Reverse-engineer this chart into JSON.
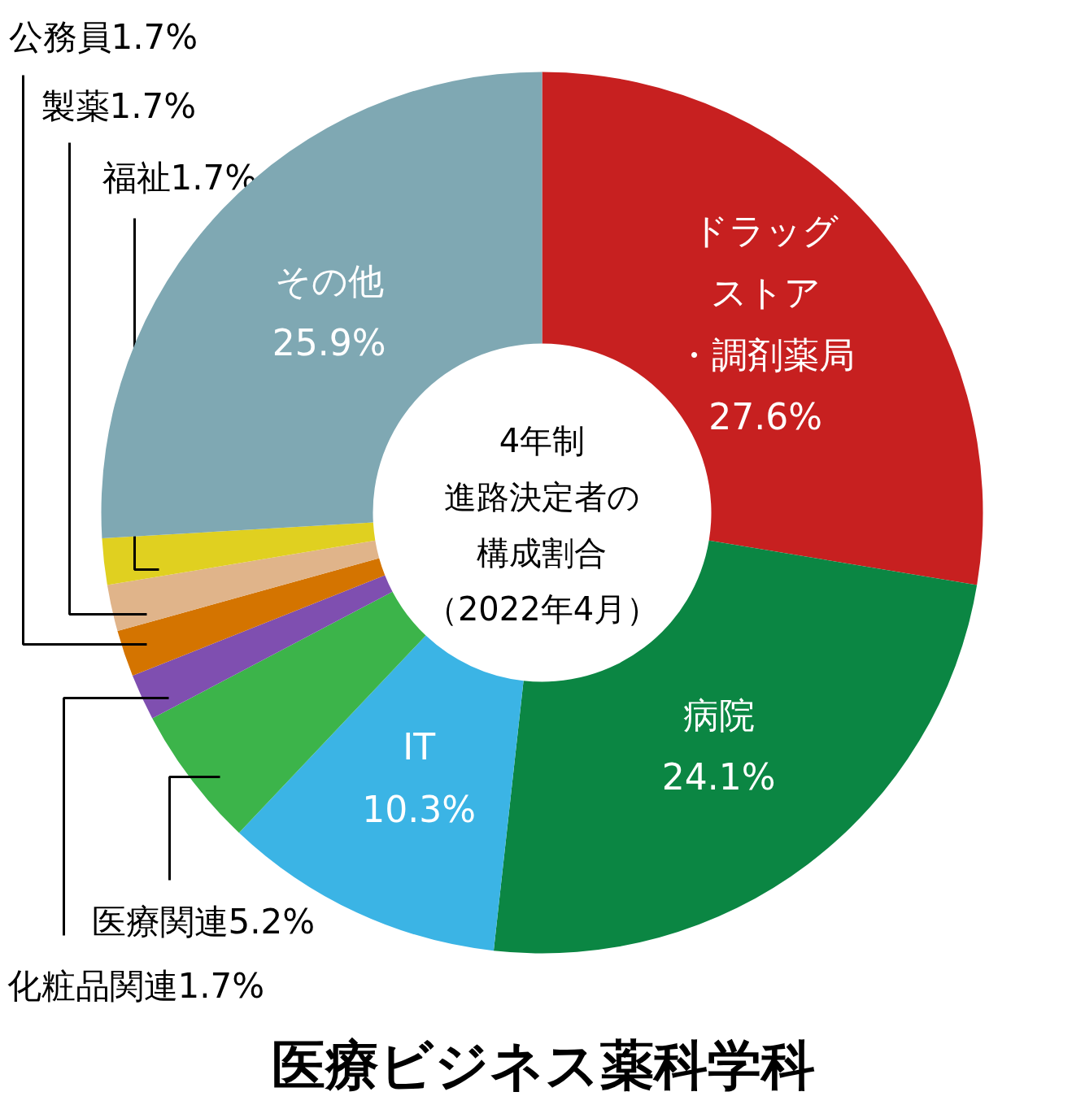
{
  "chart_data": {
    "type": "donut",
    "title": "医療ビジネス薬科学科",
    "annotations": [
      "4年制進路決定者の構成割合（2022年4月）"
    ],
    "categories": [
      "ドラッグストア・調剤薬局",
      "病院",
      "IT",
      "医療関連",
      "化粧品関連",
      "公務員",
      "製薬",
      "福祉",
      "その他"
    ],
    "values": [
      27.6,
      24.1,
      10.3,
      5.2,
      1.7,
      1.7,
      1.7,
      1.7,
      25.9
    ],
    "value_labels": [
      "27.6%",
      "24.1%",
      "10.3%",
      "5.2%",
      "1.7%",
      "1.7%",
      "1.7%",
      "1.7%",
      "25.9%"
    ],
    "colors": [
      "#c72020",
      "#0b8643",
      "#3bb4e5",
      "#3cb44a",
      "#7f4fb0",
      "#d47400",
      "#e0b48a",
      "#e0d020",
      "#7fa8b3"
    ]
  }
}
